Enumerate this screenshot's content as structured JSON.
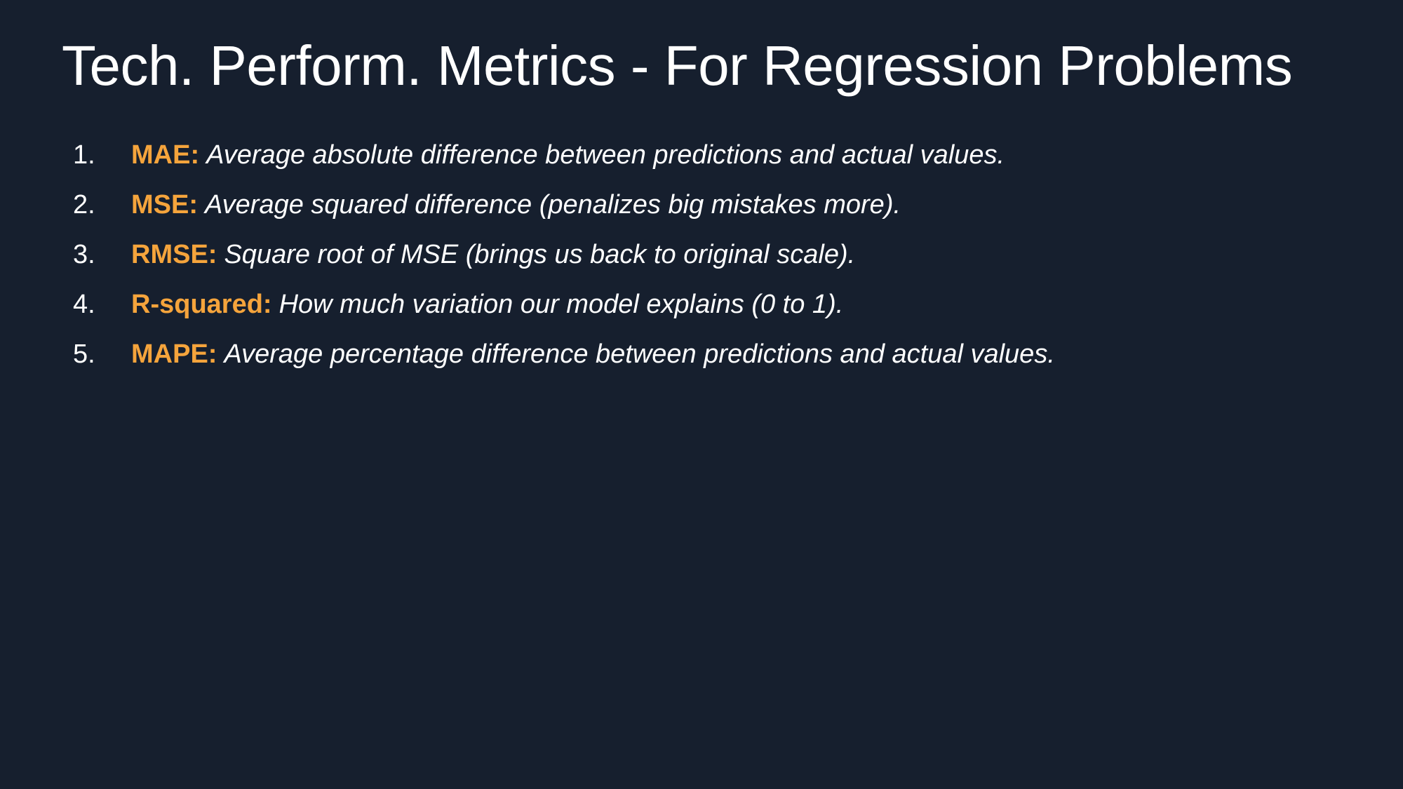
{
  "slide": {
    "title": "Tech. Perform. Metrics - For Regression Problems",
    "accent_color": "#f5a43c",
    "background_color": "#161f2e",
    "metrics": [
      {
        "number": "1.",
        "term": "MAE:",
        "description": "Average absolute difference between predictions and actual values."
      },
      {
        "number": "2.",
        "term": "MSE:",
        "description": "Average squared difference (penalizes big mistakes more)."
      },
      {
        "number": "3.",
        "term": "RMSE:",
        "description": "Square root of MSE (brings us back to original scale)."
      },
      {
        "number": "4.",
        "term": "R-squared:",
        "description": "How much variation our model explains (0 to 1)."
      },
      {
        "number": "5.",
        "term": "MAPE:",
        "description": "Average percentage difference between predictions and actual values."
      }
    ]
  }
}
